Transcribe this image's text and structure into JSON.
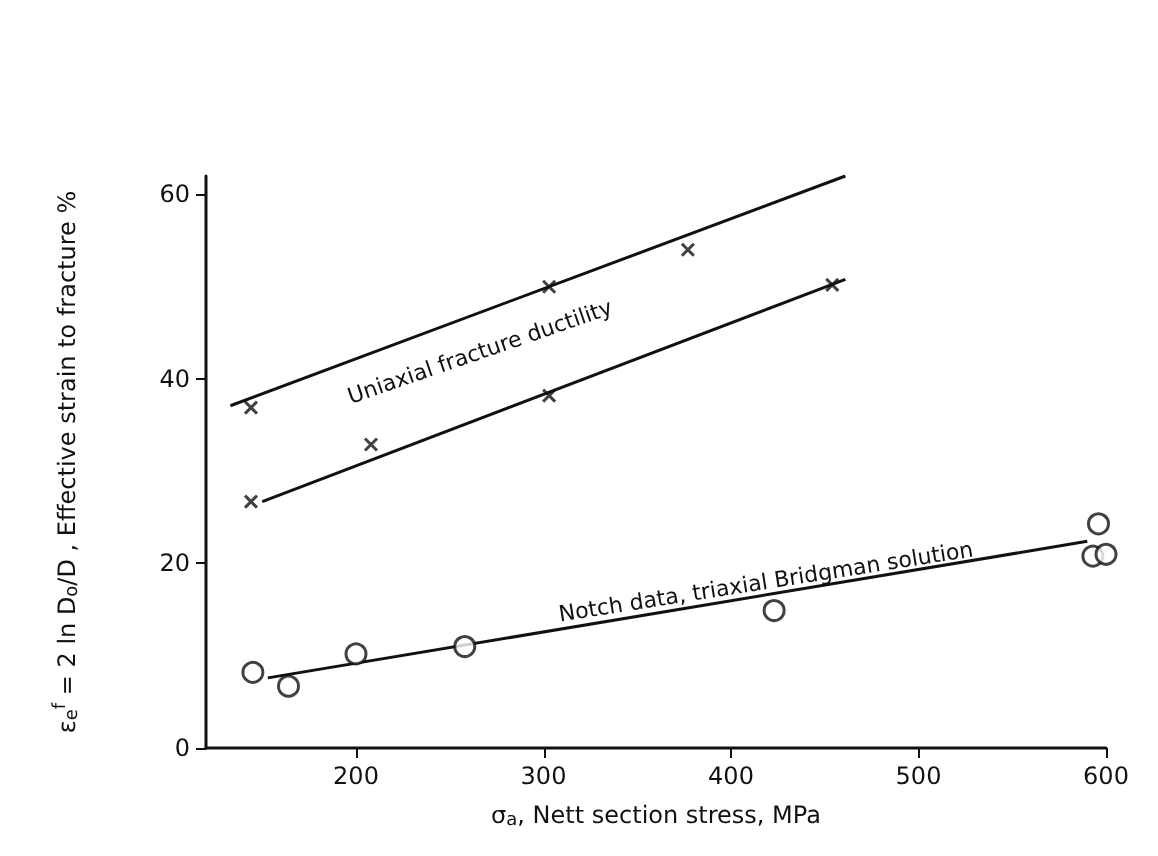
{
  "chart_data": {
    "type": "scatter",
    "xlabel": "σ$_{a}$, Nett section stress, MPa",
    "ylabel": "ε$_{e}$$^{f}$ = 2 ln D$_{o}$/D , Effective strain to fracture %",
    "xlim": [
      120,
      600
    ],
    "xticks": [
      200,
      300,
      400,
      500,
      600
    ],
    "ylim": [
      0,
      62
    ],
    "yticks": [
      0,
      20,
      40,
      60
    ],
    "grid": false,
    "series": [
      {
        "type": "line",
        "color": "#111111",
        "marker": "none",
        "x": [
          133,
          461
        ],
        "values": [
          37.1,
          62
        ]
      },
      {
        "type": "line",
        "color": "#111111",
        "marker": "none",
        "x": [
          150,
          461
        ],
        "values": [
          26.7,
          50.8
        ]
      },
      {
        "color": "#111111",
        "marker": "cross",
        "x": [
          144,
          208,
          144,
          303,
          303,
          377,
          454
        ],
        "values": [
          36.9,
          32.9,
          26.7,
          50,
          38.2,
          54,
          50.2
        ]
      },
      {
        "color": "#111111",
        "marker": "circle",
        "x": [
          145,
          164,
          200,
          258,
          423,
          596,
          593,
          600
        ],
        "values": [
          8.2,
          6.7,
          10.2,
          11,
          14.9,
          24.3,
          20.8,
          21
        ]
      },
      {
        "type": "line",
        "color": "#111111",
        "marker": "none",
        "x": [
          153,
          590
        ],
        "values": [
          7.6,
          22.4
        ]
      }
    ],
    "annotations": [
      "Uniaxial fracture ductility",
      "Notch data, triaxial Bridgman solution"
    ]
  }
}
